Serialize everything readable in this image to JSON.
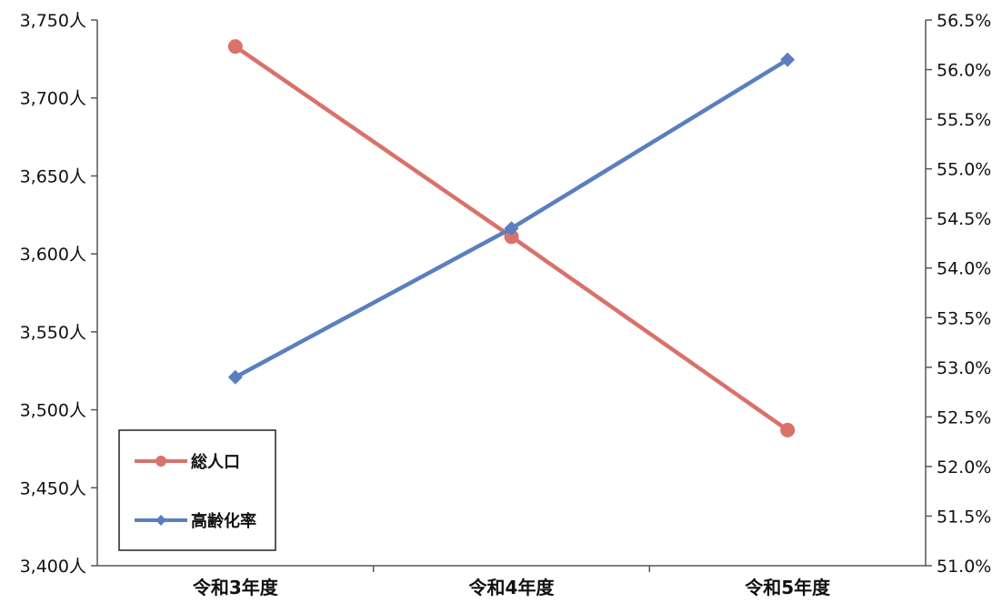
{
  "chart_data": {
    "type": "line",
    "categories": [
      "令和3年度",
      "令和4年度",
      "令和5年度"
    ],
    "series": [
      {
        "name": "総人口",
        "axis": "left",
        "values": [
          3733,
          3611,
          3487
        ],
        "color": "#d9726a",
        "marker": "circle"
      },
      {
        "name": "高齢化率",
        "axis": "right",
        "values": [
          52.9,
          54.4,
          56.1
        ],
        "color": "#5b7fbe",
        "marker": "diamond"
      }
    ],
    "y_left": {
      "range": [
        3400,
        3750
      ],
      "ticks": [
        "3,400人",
        "3,450人",
        "3,500人",
        "3,550人",
        "3,600人",
        "3,650人",
        "3,700人",
        "3,750人"
      ]
    },
    "y_right": {
      "range": [
        51.0,
        56.5
      ],
      "ticks": [
        "51.0%",
        "51.5%",
        "52.0%",
        "52.5%",
        "53.0%",
        "53.5%",
        "54.0%",
        "54.5%",
        "55.0%",
        "55.5%",
        "56.0%",
        "56.5%"
      ]
    },
    "grid": false,
    "legend_position": "bottom-left"
  }
}
